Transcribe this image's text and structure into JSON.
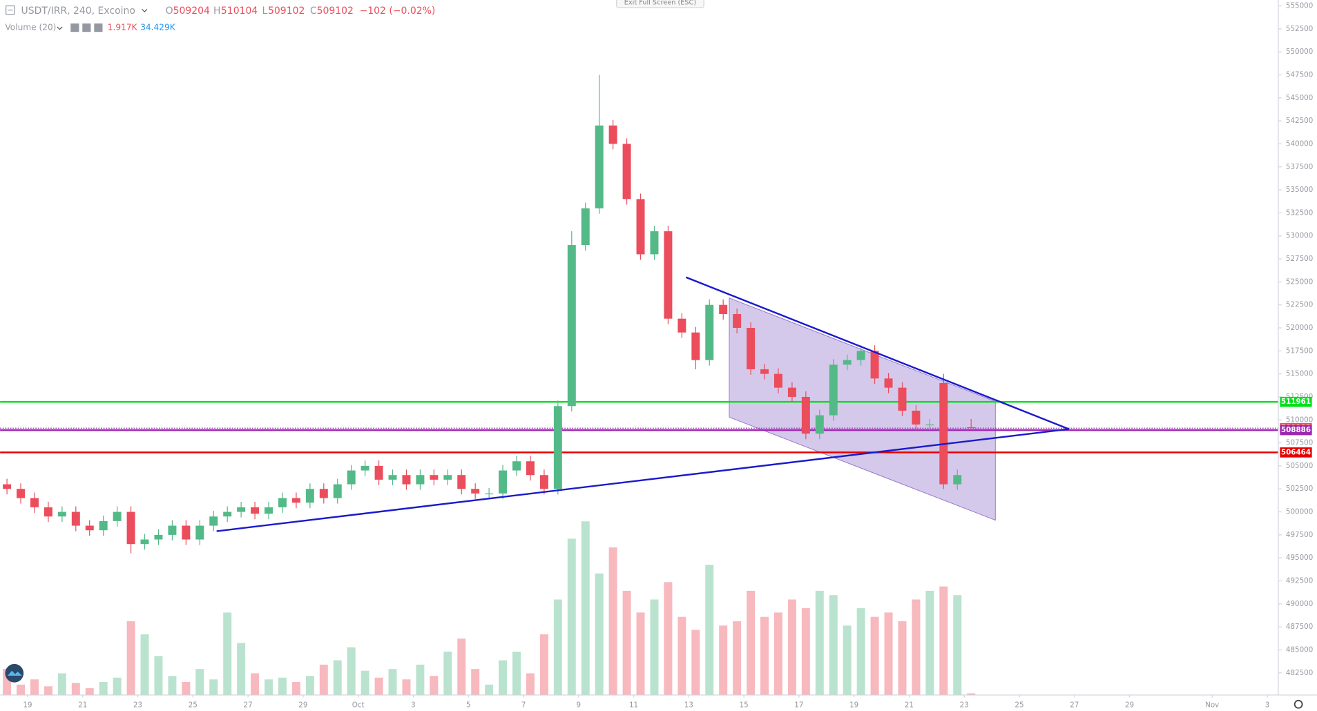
{
  "chart_data": {
    "type": "candlestick",
    "title": "USDT/IRR, 240, Excoino",
    "ohlc_labels": [
      "O",
      "H",
      "L",
      "C"
    ],
    "ohlc": [
      509204,
      510104,
      509102,
      509102
    ],
    "change": "−102 (−0.02%)",
    "volume_indicator": "Volume (20)",
    "volume_values": [
      "1.917K",
      "34.429K"
    ],
    "exit_button": "Exit Full Screen (ESC)",
    "up_color": "#53b987",
    "down_color": "#eb4d5c",
    "x": [
      18.25,
      18.75,
      19.25,
      19.75,
      20.25,
      20.75,
      21.25,
      21.75,
      22.25,
      22.75,
      23.25,
      23.75,
      24.25,
      24.75,
      25.25,
      25.75,
      26.25,
      26.75,
      27.25,
      27.75,
      28.25,
      28.75,
      29.25,
      29.75,
      30.25,
      30.75,
      31.25,
      31.75,
      32.25,
      32.75,
      33.25,
      33.75,
      34.25,
      34.75,
      35.25,
      35.75,
      36.25,
      36.75,
      37.25,
      37.75,
      38.25,
      38.75,
      39.25,
      39.75,
      40.25,
      40.75,
      41.25,
      41.75,
      42.25,
      42.75,
      43.25,
      43.75,
      44.25,
      44.75,
      45.25,
      45.75,
      46.25,
      46.75,
      47.25,
      47.75,
      48.25,
      48.75,
      49.25,
      49.75,
      50.25,
      50.75,
      51.25,
      51.75,
      52.25,
      52.75,
      53.25
    ],
    "open": [
      503000,
      502500,
      501500,
      500500,
      499500,
      500000,
      498500,
      498000,
      499000,
      500000,
      496500,
      497000,
      497500,
      498500,
      497000,
      498500,
      499500,
      500000,
      500500,
      499800,
      500500,
      501500,
      501000,
      502500,
      501500,
      503000,
      504500,
      505000,
      503500,
      504000,
      503000,
      504000,
      503500,
      504000,
      502500,
      502000,
      502000,
      504500,
      505500,
      504000,
      502500,
      511500,
      529000,
      533000,
      542000,
      540000,
      534000,
      528000,
      530500,
      521000,
      519500,
      516500,
      522500,
      521500,
      520000,
      515500,
      515000,
      513500,
      512500,
      508500,
      510500,
      516000,
      516500,
      517500,
      514500,
      513500,
      511000,
      509500,
      514000,
      503000,
      509204
    ],
    "high": [
      503600,
      503100,
      502100,
      501100,
      500600,
      500600,
      499100,
      499600,
      500600,
      500600,
      497600,
      498100,
      499100,
      499100,
      499100,
      500100,
      500600,
      501100,
      501100,
      501100,
      502100,
      502100,
      503100,
      503100,
      503600,
      505100,
      505600,
      505600,
      504600,
      504600,
      504600,
      504600,
      504600,
      504600,
      503100,
      502600,
      505100,
      506100,
      506100,
      504600,
      512100,
      530500,
      533600,
      547500,
      542600,
      540600,
      534600,
      531100,
      531100,
      521600,
      520100,
      523100,
      523100,
      522100,
      520600,
      516100,
      515600,
      514100,
      513100,
      511100,
      516600,
      517100,
      518100,
      518100,
      515100,
      514100,
      511600,
      510100,
      515000,
      504600,
      510104
    ],
    "low": [
      501900,
      500900,
      499900,
      498900,
      498900,
      497900,
      497400,
      497400,
      498400,
      495500,
      495900,
      496400,
      496900,
      496400,
      496400,
      497900,
      498900,
      499400,
      499200,
      499200,
      499900,
      500400,
      500400,
      500900,
      500900,
      502400,
      503900,
      502900,
      502900,
      502400,
      502400,
      502900,
      502900,
      501900,
      501400,
      501400,
      501400,
      503900,
      503400,
      501900,
      501900,
      510900,
      528400,
      532400,
      539400,
      533400,
      527400,
      527400,
      520400,
      518900,
      515500,
      515900,
      520900,
      519400,
      514900,
      514400,
      512900,
      511900,
      507900,
      507900,
      509900,
      515400,
      515900,
      513900,
      512900,
      510400,
      508900,
      508900,
      502500,
      502400,
      509102
    ],
    "close": [
      502500,
      501500,
      500500,
      499500,
      500000,
      498500,
      498000,
      499000,
      500000,
      496500,
      497000,
      497500,
      498500,
      497000,
      498500,
      499500,
      500000,
      500500,
      499800,
      500500,
      501500,
      501000,
      502500,
      501500,
      503000,
      504500,
      505000,
      503500,
      504000,
      503000,
      504000,
      503500,
      504000,
      502500,
      502000,
      502000,
      504500,
      505500,
      504000,
      502500,
      511500,
      529000,
      533000,
      542000,
      540000,
      534000,
      528000,
      530500,
      521000,
      519500,
      516500,
      522500,
      521500,
      520000,
      515500,
      515000,
      513500,
      512500,
      508500,
      510500,
      516000,
      516500,
      517500,
      514500,
      513500,
      511000,
      509500,
      509500,
      503000,
      504000,
      509102
    ],
    "volume": [
      30,
      12,
      18,
      10,
      25,
      14,
      8,
      15,
      20,
      85,
      70,
      45,
      22,
      15,
      30,
      18,
      95,
      60,
      25,
      18,
      20,
      15,
      22,
      35,
      40,
      55,
      28,
      20,
      30,
      18,
      35,
      22,
      50,
      65,
      30,
      12,
      40,
      50,
      25,
      70,
      110,
      180,
      200,
      140,
      170,
      120,
      95,
      110,
      130,
      90,
      75,
      150,
      80,
      85,
      120,
      90,
      95,
      110,
      100,
      120,
      115,
      80,
      100,
      90,
      95,
      85,
      110,
      120,
      125,
      115,
      1.917
    ],
    "volume_ylim": [
      0,
      230
    ],
    "xlim": [
      18,
      64.4
    ],
    "xticks": [
      19,
      21,
      23,
      25,
      27,
      29,
      {
        "value": 31,
        "label": "Oct"
      },
      {
        "value": 33,
        "label": "3"
      },
      {
        "value": 35,
        "label": "5"
      },
      {
        "value": 37,
        "label": "7"
      },
      {
        "value": 39,
        "label": "9"
      },
      {
        "value": 41,
        "label": "11"
      },
      {
        "value": 43,
        "label": "13"
      },
      {
        "value": 45,
        "label": "15"
      },
      {
        "value": 47,
        "label": "17"
      },
      {
        "value": 49,
        "label": "19"
      },
      {
        "value": 51,
        "label": "21"
      },
      {
        "value": 53,
        "label": "23"
      },
      {
        "value": 55,
        "label": "25"
      },
      {
        "value": 57,
        "label": "27"
      },
      {
        "value": 59,
        "label": "29"
      },
      {
        "value": 62,
        "label": "Nov"
      },
      {
        "value": 64,
        "label": "3"
      }
    ],
    "ylim": [
      480090,
      555640
    ],
    "yticks": [
      482500,
      485000,
      487500,
      490000,
      492500,
      495000,
      497500,
      500000,
      502500,
      505000,
      507500,
      510000,
      512500,
      515000,
      517500,
      520000,
      522500,
      525000,
      527500,
      530000,
      532500,
      535000,
      537500,
      540000,
      542500,
      545000,
      547500,
      550000,
      552500,
      555000
    ],
    "grid": false,
    "levels": [
      {
        "value": 511961,
        "color": "#00e01a",
        "label_color": "#00e01a",
        "style": "solid"
      },
      {
        "value": 509102,
        "color": "#9c27b0",
        "label_color": "#eb4d5c",
        "style": "dotted"
      },
      {
        "value": 508886,
        "color": "#9c27b0",
        "label_color": "#9c27b0",
        "style": "solid"
      },
      {
        "value": 506464,
        "color": "#e60000",
        "label_color": "#e60000",
        "style": "solid"
      }
    ],
    "trendlines": [
      {
        "x": [
          25.86,
          56.8
        ],
        "y": [
          497900,
          509000
        ],
        "color": "#1a1acc"
      },
      {
        "x": [
          42.9,
          56.8
        ],
        "y": [
          525500,
          509000
        ],
        "color": "#1a1acc"
      }
    ],
    "channel": {
      "x": [
        44.47,
        54.13
      ],
      "top": [
        523250,
        512000
      ],
      "bottom": [
        510300,
        499100
      ],
      "color": "#b39ddb"
    }
  }
}
